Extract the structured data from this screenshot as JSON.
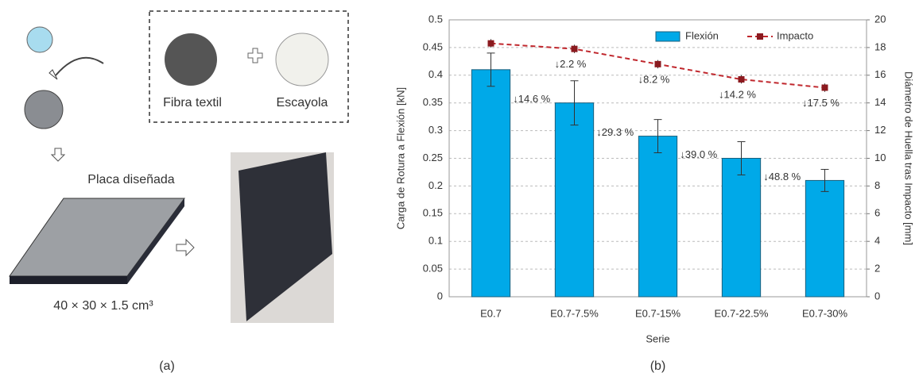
{
  "panel_a": {
    "labels": {
      "fiber": "Fibra textil",
      "plaster": "Escayola",
      "plate": "Placa diseñada",
      "size": "40 × 30 × 1.5 cm³"
    },
    "panel_label": "(a)"
  },
  "chart_data": {
    "type": "bar",
    "panel_label": "(b)",
    "x_label": "Serie",
    "y_label": "Carga de Rotura a Flexión [kN]",
    "y2_label": "Diámetro de Huella tras Impacto [mm]",
    "categories": [
      "E0.7",
      "E0.7-7.5%",
      "E0.7-15%",
      "E0.7-22.5%",
      "E0.7-30%"
    ],
    "series": [
      {
        "name": "Flexión",
        "type": "bar",
        "color": "#00a9e8",
        "values": [
          0.41,
          0.35,
          0.29,
          0.25,
          0.21
        ],
        "errors": [
          0.03,
          0.04,
          0.03,
          0.03,
          0.02
        ],
        "change_labels": [
          null,
          "↓14.6 %",
          "↓29.3 %",
          "↓39.0 %",
          "↓48.8 %"
        ],
        "label_color": "#1f78c8"
      },
      {
        "name": "Impacto",
        "type": "line",
        "axis": "y2",
        "color": "#c0272d",
        "values": [
          18.3,
          17.9,
          16.8,
          15.7,
          15.1
        ],
        "errors": [
          0.3,
          0.3,
          0.3,
          0.3,
          0.3
        ],
        "change_labels": [
          null,
          "↓2.2 %",
          "↓8.2 %",
          "↓14.2 %",
          "↓17.5 %"
        ],
        "label_color": "#c8742e"
      }
    ],
    "ylim": [
      0,
      0.5
    ],
    "yticks": [
      0,
      0.05,
      0.1,
      0.15,
      0.2,
      0.25,
      0.3,
      0.35,
      0.4,
      0.45,
      0.5
    ],
    "y2lim": [
      0,
      20
    ],
    "y2ticks": [
      0,
      2,
      4,
      6,
      8,
      10,
      12,
      14,
      16,
      18,
      20
    ],
    "grid": true,
    "legend": "top-right"
  }
}
